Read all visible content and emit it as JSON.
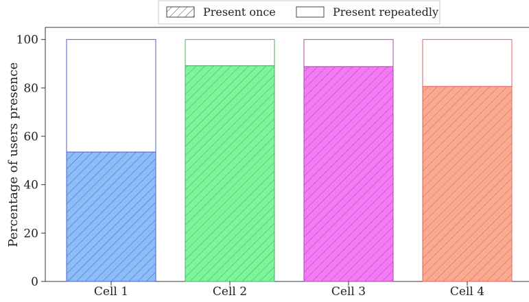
{
  "chart_data": {
    "type": "bar",
    "stacked": true,
    "categories": [
      "Cell 1",
      "Cell 2",
      "Cell 3",
      "Cell 4"
    ],
    "colors": [
      "#8bbdf7",
      "#7df59a",
      "#f57af5",
      "#f9ab90"
    ],
    "edge_colors": [
      "#5060d0",
      "#45b060",
      "#b045b0",
      "#e06060"
    ],
    "series": [
      {
        "name": "Present once",
        "values": [
          53.5,
          89.2,
          88.8,
          80.6
        ],
        "hatch": true
      },
      {
        "name": "Present repeatedly",
        "values": [
          46.5,
          10.8,
          11.2,
          19.4
        ],
        "hatch": false
      }
    ],
    "ylabel": "Percentage of users presence",
    "xlabel": "",
    "ylim": [
      0,
      105
    ],
    "yticks": [
      0,
      20,
      40,
      60,
      80,
      100
    ],
    "grid": false,
    "legend_position": "top-center"
  }
}
